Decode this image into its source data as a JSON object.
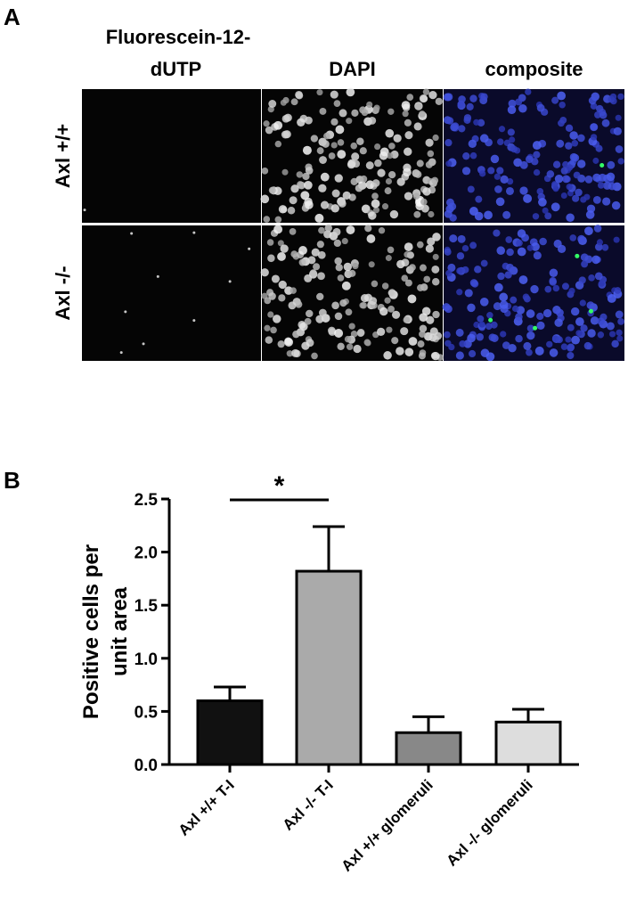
{
  "panel_a": {
    "label": "A",
    "columns": [
      [
        "Fluorescein-12-",
        "dUTP"
      ],
      [
        "DAPI"
      ],
      [
        "composite"
      ]
    ],
    "rows": [
      "Axl +/+",
      "Axl -/-"
    ]
  },
  "chart_data": {
    "type": "bar",
    "label": "B",
    "ylabel": [
      "Positive cells per",
      "unit area"
    ],
    "categories": [
      "Axl +/+ T-I",
      "Axl -/- T-I",
      "Axl +/+ glomeruli",
      "Axl -/- glomeruli"
    ],
    "values": [
      0.6,
      1.82,
      0.3,
      0.4
    ],
    "errors": [
      0.13,
      0.42,
      0.15,
      0.12
    ],
    "colors": [
      "#111111",
      "#aaaaaa",
      "#888888",
      "#dddddd"
    ],
    "ylim": [
      0,
      2.5
    ],
    "yticks": [
      {
        "value": 0,
        "label": "0.0"
      },
      0.5,
      {
        "value": 1,
        "label": "1.0"
      },
      1.5,
      {
        "value": 2,
        "label": "2.0"
      },
      2.5
    ],
    "annotation": "*"
  }
}
